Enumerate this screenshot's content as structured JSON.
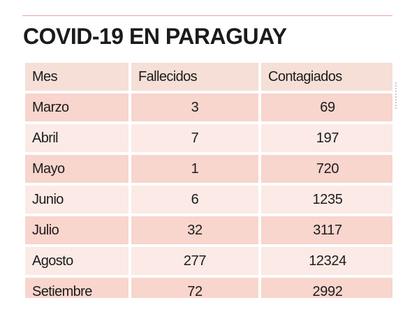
{
  "title": "COVID-19 EN PARAGUAY",
  "chart_data": {
    "type": "table",
    "title": "COVID-19 EN PARAGUAY",
    "columns": [
      "Mes",
      "Fallecidos",
      "Contagiados"
    ],
    "rows": [
      {
        "mes": "Marzo",
        "fallecidos": "3",
        "contagiados": "69"
      },
      {
        "mes": "Abril",
        "fallecidos": "7",
        "contagiados": "197"
      },
      {
        "mes": "Mayo",
        "fallecidos": "1",
        "contagiados": "720"
      },
      {
        "mes": "Junio",
        "fallecidos": "6",
        "contagiados": "1235"
      },
      {
        "mes": "Julio",
        "fallecidos": "32",
        "contagiados": "3117"
      },
      {
        "mes": "Agosto",
        "fallecidos": "277",
        "contagiados": "12324"
      },
      {
        "mes": "Setiembre",
        "fallecidos": "72",
        "contagiados": "2992"
      }
    ]
  },
  "colors": {
    "header_bg": "#f6dfd7",
    "row_dark": "#f8d5cd",
    "row_light": "#fbeae5",
    "text": "#1c1c1c"
  }
}
